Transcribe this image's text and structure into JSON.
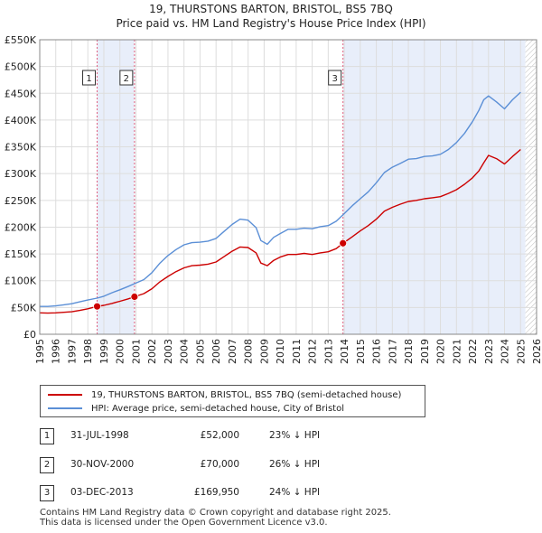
{
  "title": "19, THURSTONS BARTON, BRISTOL, BS5 7BQ",
  "subtitle": "Price paid vs. HM Land Registry's House Price Index (HPI)",
  "colors": {
    "property": "#cc0000",
    "hpi": "#5b8fd6",
    "shade": "#e8eefa",
    "grid": "#dddddd",
    "vline": "#e06080"
  },
  "chart_data": {
    "type": "line",
    "xlim": [
      1995,
      2026
    ],
    "ylim": [
      0,
      550000
    ],
    "x_ticks": [
      "1995",
      "1996",
      "1997",
      "1998",
      "1999",
      "2000",
      "2001",
      "2002",
      "2003",
      "2004",
      "2005",
      "2006",
      "2007",
      "2008",
      "2009",
      "2010",
      "2011",
      "2012",
      "2013",
      "2014",
      "2015",
      "2016",
      "2017",
      "2018",
      "2019",
      "2020",
      "2021",
      "2022",
      "2023",
      "2024",
      "2025",
      "2026"
    ],
    "y_ticks": [
      {
        "value": 0,
        "label": "£0"
      },
      {
        "value": 50000,
        "label": "£50K"
      },
      {
        "value": 100000,
        "label": "£100K"
      },
      {
        "value": 150000,
        "label": "£150K"
      },
      {
        "value": 200000,
        "label": "£200K"
      },
      {
        "value": 250000,
        "label": "£250K"
      },
      {
        "value": 300000,
        "label": "£300K"
      },
      {
        "value": 350000,
        "label": "£350K"
      },
      {
        "value": 400000,
        "label": "£400K"
      },
      {
        "value": 450000,
        "label": "£450K"
      },
      {
        "value": 500000,
        "label": "£500K"
      },
      {
        "value": 550000,
        "label": "£550K"
      }
    ],
    "series": [
      {
        "name": "19, THURSTONS BARTON, BRISTOL, BS5 7BQ (semi-detached house)",
        "color": "#cc0000",
        "x": [
          1995.0,
          1995.5,
          1996.0,
          1996.5,
          1997.0,
          1997.5,
          1998.0,
          1998.58,
          1999.0,
          1999.5,
          2000.0,
          2000.5,
          2000.91,
          2001.5,
          2002.0,
          2002.5,
          2003.0,
          2003.5,
          2004.0,
          2004.5,
          2005.0,
          2005.5,
          2006.0,
          2006.5,
          2007.0,
          2007.5,
          2008.0,
          2008.5,
          2008.8,
          2009.2,
          2009.6,
          2010.0,
          2010.5,
          2011.0,
          2011.5,
          2012.0,
          2012.5,
          2013.0,
          2013.5,
          2013.92,
          2014.5,
          2015.0,
          2015.5,
          2016.0,
          2016.5,
          2017.0,
          2017.5,
          2018.0,
          2018.5,
          2019.0,
          2019.5,
          2020.0,
          2020.5,
          2021.0,
          2021.5,
          2022.0,
          2022.4,
          2022.7,
          2023.0,
          2023.5,
          2024.0,
          2024.5,
          2025.0
        ],
        "y": [
          40000,
          39500,
          40000,
          41000,
          42000,
          44500,
          47500,
          52000,
          54000,
          57500,
          61500,
          66000,
          70000,
          76000,
          85000,
          98000,
          108000,
          117000,
          124000,
          128000,
          129000,
          131000,
          135000,
          145000,
          155000,
          163000,
          162000,
          152000,
          133000,
          128000,
          138000,
          144000,
          149000,
          149000,
          151000,
          149000,
          152000,
          154000,
          160000,
          169950,
          182000,
          193000,
          203000,
          215000,
          230000,
          237000,
          243000,
          248000,
          250000,
          253000,
          255000,
          257000,
          263000,
          270000,
          280000,
          292000,
          305000,
          320000,
          334000,
          328000,
          318000,
          332000,
          345000
        ]
      },
      {
        "name": "HPI: Average price, semi-detached house, City of Bristol",
        "color": "#5b8fd6",
        "x": [
          1995.0,
          1995.5,
          1996.0,
          1996.5,
          1997.0,
          1997.5,
          1998.0,
          1998.58,
          1999.0,
          1999.5,
          2000.0,
          2000.5,
          2000.91,
          2001.5,
          2002.0,
          2002.5,
          2003.0,
          2003.5,
          2004.0,
          2004.5,
          2005.0,
          2005.5,
          2006.0,
          2006.5,
          2007.0,
          2007.5,
          2008.0,
          2008.5,
          2008.8,
          2009.2,
          2009.6,
          2010.0,
          2010.5,
          2011.0,
          2011.5,
          2012.0,
          2012.5,
          2013.0,
          2013.5,
          2013.92,
          2014.5,
          2015.0,
          2015.5,
          2016.0,
          2016.5,
          2017.0,
          2017.5,
          2018.0,
          2018.5,
          2019.0,
          2019.5,
          2020.0,
          2020.5,
          2021.0,
          2021.5,
          2022.0,
          2022.4,
          2022.7,
          2023.0,
          2023.5,
          2024.0,
          2024.5,
          2025.0
        ],
        "y": [
          52000,
          52000,
          53000,
          55000,
          57000,
          60500,
          64000,
          67500,
          71000,
          77500,
          83000,
          89000,
          94500,
          102000,
          115000,
          133000,
          147000,
          158000,
          167000,
          171000,
          172000,
          174000,
          179000,
          192000,
          205000,
          215000,
          213000,
          199000,
          175000,
          168000,
          181000,
          188000,
          196000,
          196000,
          198000,
          197000,
          201000,
          203000,
          211000,
          223000,
          240000,
          253000,
          266000,
          283000,
          302000,
          312000,
          319000,
          327000,
          328000,
          332000,
          333000,
          336000,
          345000,
          358000,
          375000,
          397000,
          418000,
          438000,
          445000,
          434000,
          421000,
          438000,
          452000
        ]
      }
    ],
    "sales": [
      {
        "label": "1",
        "x": 1998.58,
        "y": 52000
      },
      {
        "label": "2",
        "x": 2000.91,
        "y": 70000
      },
      {
        "label": "3",
        "x": 2013.92,
        "y": 169950
      }
    ],
    "shaded_spans": [
      [
        1998.58,
        2000.91
      ],
      [
        2013.92,
        2025.3
      ]
    ],
    "forecast_from": 2025.3
  },
  "legend": [
    {
      "label": "19, THURSTONS BARTON, BRISTOL, BS5 7BQ (semi-detached house)",
      "color": "#cc0000"
    },
    {
      "label": "HPI: Average price, semi-detached house, City of Bristol",
      "color": "#5b8fd6"
    }
  ],
  "transactions": [
    {
      "num": "1",
      "date": "31-JUL-1998",
      "price": "£52,000",
      "pct": "23% ↓ HPI"
    },
    {
      "num": "2",
      "date": "30-NOV-2000",
      "price": "£70,000",
      "pct": "26% ↓ HPI"
    },
    {
      "num": "3",
      "date": "03-DEC-2013",
      "price": "£169,950",
      "pct": "24% ↓ HPI"
    }
  ],
  "footer": {
    "line1": "Contains HM Land Registry data © Crown copyright and database right 2025.",
    "line2": "This data is licensed under the Open Government Licence v3.0."
  }
}
